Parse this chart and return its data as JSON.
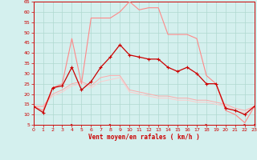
{
  "xlabel": "Vent moyen/en rafales ( km/h )",
  "xlim": [
    0,
    23
  ],
  "ylim": [
    5,
    65
  ],
  "yticks": [
    5,
    10,
    15,
    20,
    25,
    30,
    35,
    40,
    45,
    50,
    55,
    60,
    65
  ],
  "xticks": [
    0,
    1,
    2,
    3,
    4,
    5,
    6,
    7,
    8,
    9,
    10,
    11,
    12,
    13,
    14,
    15,
    16,
    17,
    18,
    19,
    20,
    21,
    22,
    23
  ],
  "bg_color": "#d4f0ee",
  "grid_color": "#b0d8d0",
  "line_dark_x": [
    0,
    1,
    2,
    3,
    4,
    5,
    6,
    7,
    8,
    9,
    10,
    11,
    12,
    13,
    14,
    15,
    16,
    17,
    18,
    19,
    20,
    21,
    22,
    23
  ],
  "line_dark_y": [
    14,
    11,
    23,
    24,
    33,
    22,
    26,
    33,
    38,
    44,
    39,
    38,
    37,
    37,
    33,
    31,
    33,
    30,
    25,
    25,
    13,
    12,
    10,
    14
  ],
  "line_light1_y": [
    14,
    12,
    23,
    25,
    47,
    25,
    57,
    57,
    57,
    60,
    65,
    61,
    62,
    62,
    49,
    49,
    49,
    47,
    29,
    25,
    12,
    10,
    6,
    14
  ],
  "line_light2_y": [
    14,
    14,
    20,
    22,
    25,
    26,
    24,
    28,
    29,
    29,
    22,
    21,
    20,
    19,
    19,
    18,
    18,
    17,
    17,
    16,
    15,
    13,
    12,
    14
  ],
  "line_light3_y": [
    14,
    14,
    19,
    21,
    24,
    25,
    23,
    26,
    27,
    28,
    21,
    20,
    19,
    18,
    18,
    17,
    17,
    16,
    16,
    15,
    14,
    12,
    11,
    14
  ],
  "dark_color": "#cc0000",
  "light1_color": "#ff8888",
  "light2_color": "#ffaaaa",
  "light3_color": "#ffcccc",
  "tick_color": "#cc0000",
  "label_color": "#cc0000",
  "spine_color": "#cc0000",
  "arrow_angles": [
    90,
    90,
    90,
    90,
    45,
    90,
    90,
    90,
    45,
    90,
    90,
    90,
    90,
    90,
    90,
    90,
    90,
    90,
    45,
    90,
    90,
    90,
    45,
    135
  ]
}
